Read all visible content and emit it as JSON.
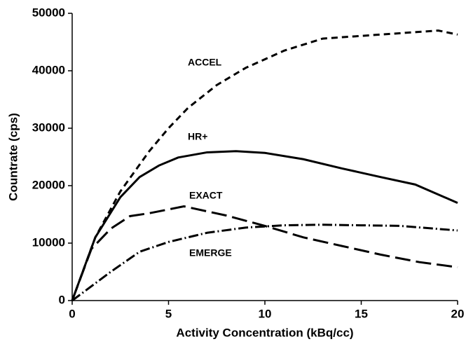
{
  "chart_data": {
    "type": "line",
    "xlabel": "Activity Concentration (kBq/cc)",
    "ylabel": "Countrate (cps)",
    "xlim": [
      0,
      20
    ],
    "xticks": [
      0,
      5,
      10,
      15,
      20
    ],
    "ylim": [
      0,
      50000
    ],
    "yticks": [
      0,
      10000,
      20000,
      30000,
      40000,
      50000
    ],
    "series": [
      {
        "name": "ACCEL",
        "color": "#000000",
        "dash": "9,6",
        "x": [
          0,
          1.2,
          2.5,
          4,
          5,
          6,
          7.5,
          9,
          11,
          13,
          19,
          20
        ],
        "values": [
          0,
          11000,
          19000,
          26000,
          30000,
          33500,
          37500,
          40500,
          43500,
          45600,
          47000,
          46300
        ]
      },
      {
        "name": "HR+",
        "color": "#000000",
        "dash": "none",
        "x": [
          0,
          1.2,
          2.5,
          3.5,
          4.5,
          5.5,
          7,
          8.5,
          10,
          12,
          14,
          16,
          17.8,
          20
        ],
        "values": [
          0,
          11000,
          18000,
          21500,
          23500,
          24900,
          25800,
          26000,
          25700,
          24600,
          23000,
          21500,
          20200,
          17000
        ]
      },
      {
        "name": "EXACT",
        "color": "#000000",
        "dash": "22,8",
        "x": [
          0,
          1,
          2,
          3,
          4,
          5.8,
          8,
          10,
          12,
          14,
          16,
          18,
          20
        ],
        "values": [
          0,
          9000,
          12500,
          14700,
          15200,
          16400,
          14800,
          13000,
          11000,
          9500,
          8000,
          6700,
          5800
        ]
      },
      {
        "name": "EMERGE",
        "color": "#000000",
        "dash": "14,4,2,4",
        "x": [
          0,
          2,
          3.5,
          5,
          7,
          9,
          11,
          13,
          15,
          17,
          20
        ],
        "values": [
          0,
          5000,
          8500,
          10200,
          11800,
          12700,
          13100,
          13200,
          13100,
          13000,
          12200
        ]
      }
    ]
  }
}
